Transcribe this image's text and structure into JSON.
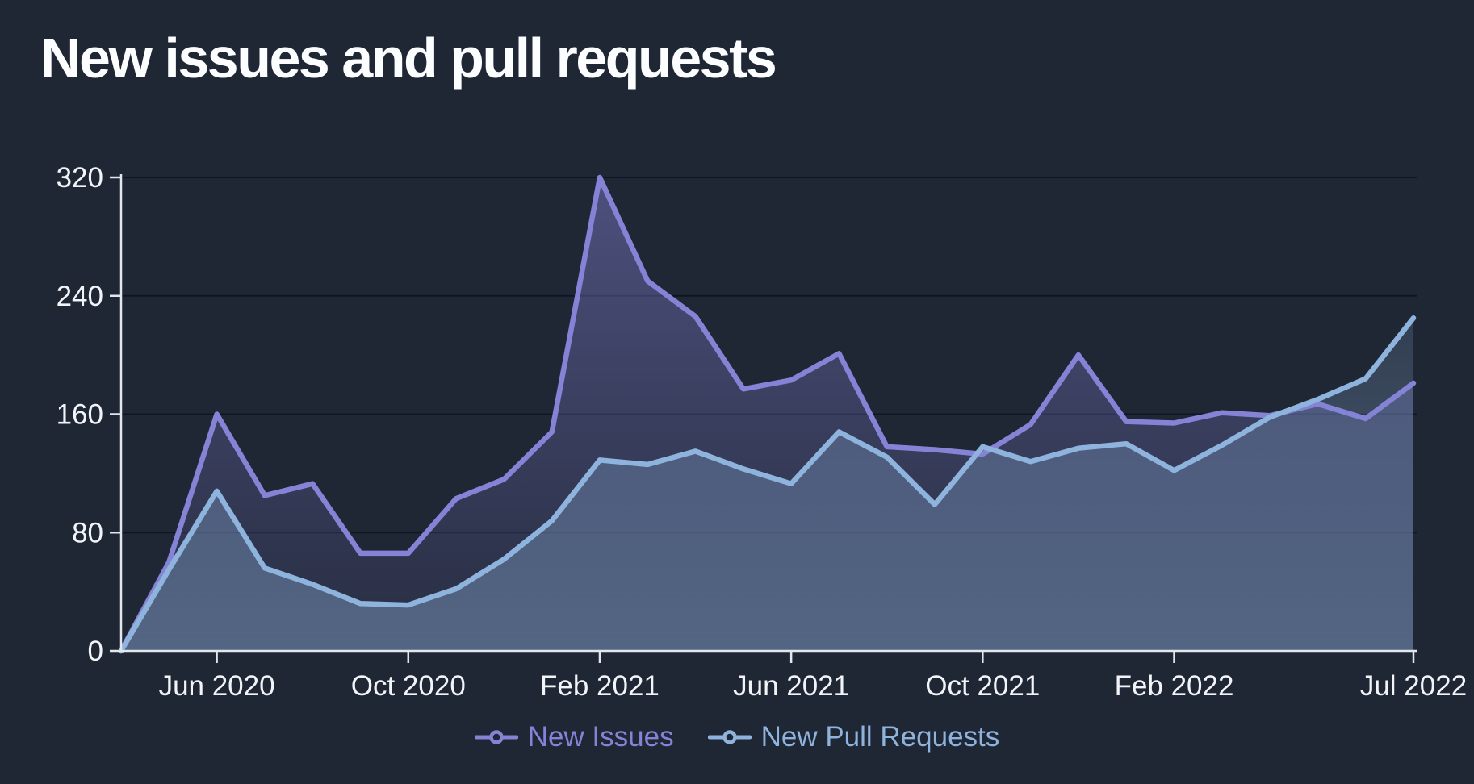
{
  "title": "New issues and pull requests",
  "colors": {
    "background": "#1F2634",
    "issues": "#8583D6",
    "pull_requests": "#8EB3DD",
    "axis": "#E2E6ED",
    "text": "#F2F4F8"
  },
  "legend": [
    {
      "label": "New Issues",
      "color": "#8583D6"
    },
    {
      "label": "New Pull Requests",
      "color": "#8EB3DD"
    }
  ],
  "chart_data": {
    "type": "area",
    "title": "New issues and pull requests",
    "xlabel": "",
    "ylabel": "",
    "ylim": [
      0,
      320
    ],
    "y_ticks": [
      0,
      80,
      160,
      240,
      320
    ],
    "grid": true,
    "legend_position": "bottom",
    "x": [
      "Apr 2020",
      "May 2020",
      "Jun 2020",
      "Jul 2020",
      "Aug 2020",
      "Sep 2020",
      "Oct 2020",
      "Nov 2020",
      "Dec 2020",
      "Jan 2021",
      "Feb 2021",
      "Mar 2021",
      "Apr 2021",
      "May 2021",
      "Jun 2021",
      "Jul 2021",
      "Aug 2021",
      "Sep 2021",
      "Oct 2021",
      "Nov 2021",
      "Dec 2021",
      "Jan 2022",
      "Feb 2022",
      "Mar 2022",
      "Apr 2022",
      "May 2022",
      "Jun 2022",
      "Jul 2022"
    ],
    "x_tick_labels": [
      "Jun 2020",
      "Oct 2020",
      "Feb 2021",
      "Jun 2021",
      "Oct 2021",
      "Feb 2022",
      "Jul 2022"
    ],
    "x_tick_indices": [
      2,
      6,
      10,
      14,
      18,
      22,
      27
    ],
    "series": [
      {
        "name": "New Issues",
        "color": "#8583D6",
        "values": [
          0,
          60,
          160,
          105,
          113,
          66,
          66,
          103,
          116,
          148,
          320,
          250,
          226,
          177,
          183,
          201,
          138,
          136,
          133,
          153,
          200,
          155,
          154,
          161,
          159,
          167,
          157,
          181
        ]
      },
      {
        "name": "New Pull Requests",
        "color": "#8EB3DD",
        "values": [
          0,
          55,
          108,
          56,
          45,
          32,
          31,
          42,
          62,
          88,
          129,
          126,
          135,
          123,
          113,
          148,
          131,
          99,
          138,
          128,
          137,
          140,
          122,
          139,
          158,
          170,
          184,
          225
        ]
      }
    ]
  }
}
